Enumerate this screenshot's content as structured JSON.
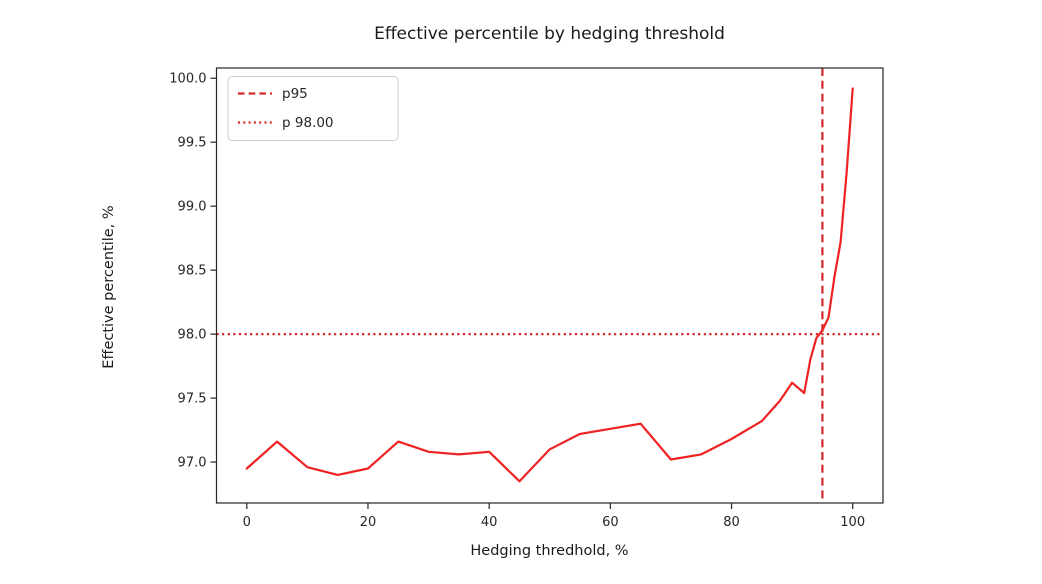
{
  "window": {
    "background": "#ffffff"
  },
  "colors": {
    "axis": "#262626",
    "text": "#262626",
    "title_text": "#1a1a1a",
    "legend_border": "#cccccc",
    "legend_background": "#ffffff",
    "series_red": "#ee2222",
    "reference_red": "#d62728"
  },
  "chart_data": {
    "type": "line",
    "title": "Effective percentile by hedging threshold",
    "xlabel": "Hedging thredhold, %",
    "ylabel": "Effective percentile, %",
    "xlim": [
      -5,
      105
    ],
    "ylim": [
      96.68,
      100.08
    ],
    "grid": false,
    "legend_position": "upper-left",
    "xticks": {
      "values": [
        0,
        20,
        40,
        60,
        80,
        100
      ],
      "labels": [
        "0",
        "20",
        "40",
        "60",
        "80",
        "100"
      ]
    },
    "yticks": {
      "values": [
        97.0,
        97.5,
        98.0,
        98.5,
        99.0,
        99.5,
        100.0
      ],
      "labels": [
        "97.0",
        "97.5",
        "98.0",
        "98.5",
        "99.0",
        "99.5",
        "100.0"
      ]
    },
    "reference_lines": [
      {
        "type": "vline",
        "x": 95,
        "label": "p95",
        "style": "dashed",
        "color": "#d62728"
      },
      {
        "type": "hline",
        "y": 98.0,
        "label": "p 98.00",
        "style": "dotted",
        "color": "#d62728"
      }
    ],
    "series": [
      {
        "name": "effective percentile",
        "color": "#ee2222",
        "style": "solid",
        "points": [
          [
            0,
            96.95
          ],
          [
            5,
            97.16
          ],
          [
            10,
            96.96
          ],
          [
            15,
            96.9
          ],
          [
            20,
            96.95
          ],
          [
            25,
            97.16
          ],
          [
            30,
            97.08
          ],
          [
            35,
            97.06
          ],
          [
            40,
            97.08
          ],
          [
            45,
            96.85
          ],
          [
            50,
            97.1
          ],
          [
            55,
            97.22
          ],
          [
            60,
            97.26
          ],
          [
            65,
            97.3
          ],
          [
            70,
            97.02
          ],
          [
            75,
            97.06
          ],
          [
            80,
            97.18
          ],
          [
            85,
            97.32
          ],
          [
            88,
            97.48
          ],
          [
            90,
            97.62
          ],
          [
            92,
            97.54
          ],
          [
            93,
            97.8
          ],
          [
            94,
            97.97
          ],
          [
            95,
            98.03
          ],
          [
            96,
            98.13
          ],
          [
            97,
            98.45
          ],
          [
            98,
            98.72
          ],
          [
            99,
            99.26
          ],
          [
            100,
            99.92
          ]
        ]
      }
    ]
  }
}
